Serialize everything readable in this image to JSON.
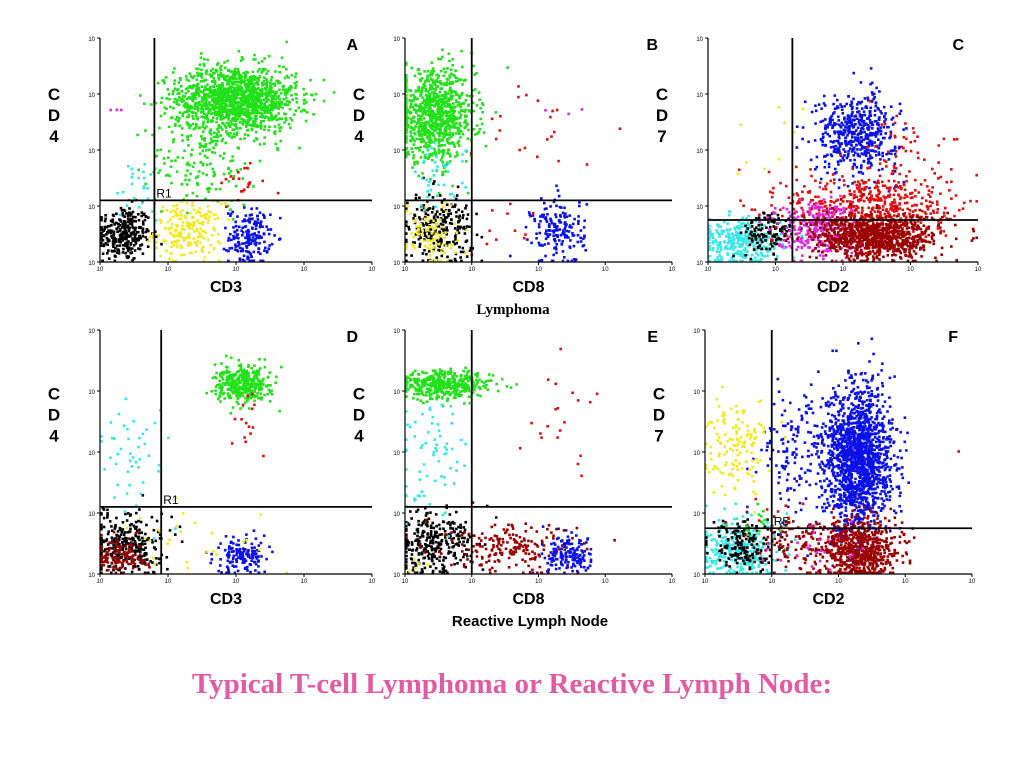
{
  "title": "Typical T-cell Lymphoma or Reactive Lymph Node:",
  "captions": {
    "row1": "Lymphoma",
    "row2": "Reactive Lymph Node"
  },
  "colors": {
    "black": "#000000",
    "yellow": "#f2ea1c",
    "blue": "#0a10e8",
    "green": "#22e01a",
    "red": "#e01010",
    "cyan": "#33e8e8",
    "magenta": "#e02ae0",
    "darkred": "#9a0000"
  },
  "chart_data": [
    {
      "type": "scatter",
      "id": "A",
      "letter": "A",
      "xlabel": "CD3",
      "ylabel": [
        "C",
        "D",
        "4"
      ],
      "gate_label": "R1",
      "quadrant_x": 0.8,
      "quadrant_y": 1.1,
      "xlim": [
        0,
        4
      ],
      "ylim": [
        0,
        4
      ],
      "scale": "log",
      "y_tick_labels": [
        "10",
        "10",
        "10",
        "10",
        "10"
      ],
      "x_tick_labels": [
        "10",
        "10",
        "10",
        "10",
        "10"
      ],
      "series": [
        {
          "color": "black",
          "clusters": [
            {
              "x": 0.35,
              "y": 0.5,
              "sx": 0.2,
              "sy": 0.25,
              "n": 300
            }
          ]
        },
        {
          "color": "yellow",
          "clusters": [
            {
              "x": 1.3,
              "y": 0.55,
              "sx": 0.25,
              "sy": 0.25,
              "n": 200
            }
          ]
        },
        {
          "color": "blue",
          "clusters": [
            {
              "x": 2.2,
              "y": 0.45,
              "sx": 0.15,
              "sy": 0.25,
              "n": 180
            }
          ]
        },
        {
          "color": "green",
          "clusters": [
            {
              "x": 2.0,
              "y": 2.9,
              "sx": 0.45,
              "sy": 0.3,
              "n": 1400
            },
            {
              "x": 1.5,
              "y": 1.8,
              "sx": 0.4,
              "sy": 0.4,
              "n": 150
            }
          ]
        },
        {
          "color": "red",
          "clusters": [
            {
              "x": 2.1,
              "y": 1.4,
              "sx": 0.2,
              "sy": 0.2,
              "n": 20
            }
          ]
        },
        {
          "color": "cyan",
          "clusters": [
            {
              "x": 0.6,
              "y": 1.3,
              "sx": 0.2,
              "sy": 0.3,
              "n": 25
            }
          ]
        },
        {
          "color": "magenta",
          "clusters": [
            {
              "x": 0.3,
              "y": 2.7,
              "sx": 0.1,
              "sy": 0.1,
              "n": 3
            }
          ]
        }
      ]
    },
    {
      "type": "scatter",
      "id": "B",
      "letter": "B",
      "xlabel": "CD8",
      "ylabel": [
        "C",
        "D",
        "4"
      ],
      "gate_label": "",
      "quadrant_x": 1.0,
      "quadrant_y": 1.1,
      "xlim": [
        0,
        4
      ],
      "ylim": [
        0,
        4
      ],
      "scale": "log",
      "y_tick_labels": [
        "10",
        "10",
        "10",
        "10",
        "10"
      ],
      "x_tick_labels": [
        "10",
        "10",
        "10",
        "10",
        "10"
      ],
      "series": [
        {
          "color": "green",
          "clusters": [
            {
              "x": 0.45,
              "y": 2.6,
              "sx": 0.3,
              "sy": 0.4,
              "n": 900
            }
          ]
        },
        {
          "color": "black",
          "clusters": [
            {
              "x": 0.5,
              "y": 0.6,
              "sx": 0.25,
              "sy": 0.3,
              "n": 250
            }
          ]
        },
        {
          "color": "yellow",
          "clusters": [
            {
              "x": 0.4,
              "y": 0.5,
              "sx": 0.2,
              "sy": 0.3,
              "n": 90
            }
          ]
        },
        {
          "color": "blue",
          "clusters": [
            {
              "x": 2.3,
              "y": 0.55,
              "sx": 0.2,
              "sy": 0.3,
              "n": 170
            }
          ]
        },
        {
          "color": "red",
          "clusters": [
            {
              "x": 2.0,
              "y": 2.2,
              "sx": 0.4,
              "sy": 0.5,
              "n": 22
            },
            {
              "x": 1.5,
              "y": 0.6,
              "sx": 0.3,
              "sy": 0.3,
              "n": 10
            }
          ]
        },
        {
          "color": "cyan",
          "clusters": [
            {
              "x": 0.5,
              "y": 1.5,
              "sx": 0.2,
              "sy": 0.3,
              "n": 40
            }
          ]
        },
        {
          "color": "magenta",
          "clusters": [
            {
              "x": 2.2,
              "y": 2.8,
              "sx": 0.3,
              "sy": 0.1,
              "n": 3
            }
          ]
        }
      ]
    },
    {
      "type": "scatter",
      "id": "C",
      "letter": "C",
      "xlabel": "CD2",
      "ylabel": [
        "C",
        "D",
        "7"
      ],
      "gate_label": "",
      "quadrant_x": 1.25,
      "quadrant_y": 0.75,
      "xlim": [
        0,
        4
      ],
      "ylim": [
        0,
        4
      ],
      "scale": "log",
      "y_tick_labels": [
        "10",
        "10",
        "10",
        "10",
        "10"
      ],
      "x_tick_labels": [
        "10",
        "10",
        "10",
        "10",
        "10"
      ],
      "series": [
        {
          "color": "cyan",
          "clusters": [
            {
              "x": 0.5,
              "y": 0.35,
              "sx": 0.3,
              "sy": 0.2,
              "n": 300
            }
          ]
        },
        {
          "color": "black",
          "clusters": [
            {
              "x": 0.9,
              "y": 0.5,
              "sx": 0.2,
              "sy": 0.2,
              "n": 120
            }
          ]
        },
        {
          "color": "blue",
          "clusters": [
            {
              "x": 2.2,
              "y": 2.3,
              "sx": 0.3,
              "sy": 0.35,
              "n": 500
            }
          ]
        },
        {
          "color": "red",
          "clusters": [
            {
              "x": 2.4,
              "y": 1.0,
              "sx": 0.6,
              "sy": 0.3,
              "n": 500
            },
            {
              "x": 2.8,
              "y": 1.9,
              "sx": 0.3,
              "sy": 0.4,
              "n": 60
            }
          ]
        },
        {
          "color": "magenta",
          "clusters": [
            {
              "x": 1.6,
              "y": 0.6,
              "sx": 0.3,
              "sy": 0.25,
              "n": 300
            }
          ]
        },
        {
          "color": "darkred",
          "clusters": [
            {
              "x": 2.5,
              "y": 0.45,
              "sx": 0.45,
              "sy": 0.2,
              "n": 900
            }
          ]
        },
        {
          "color": "yellow",
          "clusters": [
            {
              "x": 0.8,
              "y": 2.2,
              "sx": 0.4,
              "sy": 0.6,
              "n": 10
            }
          ]
        }
      ]
    },
    {
      "type": "scatter",
      "id": "D",
      "letter": "D",
      "xlabel": "CD3",
      "ylabel": [
        "C",
        "D",
        "4"
      ],
      "gate_label": "R1",
      "quadrant_x": 0.9,
      "quadrant_y": 1.1,
      "xlim": [
        0,
        4
      ],
      "ylim": [
        0,
        4
      ],
      "scale": "log",
      "y_tick_labels": [
        "10",
        "10",
        "10",
        "10",
        "10"
      ],
      "x_tick_labels": [
        "10",
        "10",
        "10",
        "10",
        "10"
      ],
      "series": [
        {
          "color": "green",
          "clusters": [
            {
              "x": 2.1,
              "y": 3.1,
              "sx": 0.2,
              "sy": 0.15,
              "n": 350
            }
          ]
        },
        {
          "color": "black",
          "clusters": [
            {
              "x": 0.4,
              "y": 0.5,
              "sx": 0.25,
              "sy": 0.25,
              "n": 300
            }
          ]
        },
        {
          "color": "darkred",
          "clusters": [
            {
              "x": 0.3,
              "y": 0.3,
              "sx": 0.2,
              "sy": 0.15,
              "n": 120
            }
          ]
        },
        {
          "color": "blue",
          "clusters": [
            {
              "x": 2.1,
              "y": 0.3,
              "sx": 0.2,
              "sy": 0.15,
              "n": 150
            }
          ]
        },
        {
          "color": "yellow",
          "clusters": [
            {
              "x": 1.5,
              "y": 0.6,
              "sx": 0.6,
              "sy": 0.3,
              "n": 25
            }
          ]
        },
        {
          "color": "cyan",
          "clusters": [
            {
              "x": 0.5,
              "y": 2.0,
              "sx": 0.25,
              "sy": 0.5,
              "n": 45
            }
          ]
        },
        {
          "color": "red",
          "clusters": [
            {
              "x": 2.2,
              "y": 2.4,
              "sx": 0.15,
              "sy": 0.3,
              "n": 15
            }
          ]
        }
      ]
    },
    {
      "type": "scatter",
      "id": "E",
      "letter": "E",
      "xlabel": "CD8",
      "ylabel": [
        "C",
        "D",
        "4"
      ],
      "gate_label": "",
      "quadrant_x": 1.0,
      "quadrant_y": 1.1,
      "xlim": [
        0,
        4
      ],
      "ylim": [
        0,
        4
      ],
      "scale": "log",
      "y_tick_labels": [
        "10",
        "10",
        "10",
        "10",
        "10"
      ],
      "x_tick_labels": [
        "10",
        "10",
        "10",
        "10",
        "10"
      ],
      "series": [
        {
          "color": "green",
          "clusters": [
            {
              "x": 0.6,
              "y": 3.1,
              "sx": 0.35,
              "sy": 0.12,
              "n": 400
            }
          ]
        },
        {
          "color": "black",
          "clusters": [
            {
              "x": 0.4,
              "y": 0.5,
              "sx": 0.3,
              "sy": 0.25,
              "n": 300
            }
          ]
        },
        {
          "color": "darkred",
          "clusters": [
            {
              "x": 1.6,
              "y": 0.4,
              "sx": 0.5,
              "sy": 0.2,
              "n": 200
            }
          ]
        },
        {
          "color": "blue",
          "clusters": [
            {
              "x": 2.5,
              "y": 0.3,
              "sx": 0.2,
              "sy": 0.15,
              "n": 150
            }
          ]
        },
        {
          "color": "cyan",
          "clusters": [
            {
              "x": 0.4,
              "y": 1.8,
              "sx": 0.25,
              "sy": 0.5,
              "n": 70
            }
          ]
        },
        {
          "color": "red",
          "clusters": [
            {
              "x": 2.3,
              "y": 2.6,
              "sx": 0.3,
              "sy": 0.4,
              "n": 20
            }
          ]
        },
        {
          "color": "yellow",
          "clusters": [
            {
              "x": 0.2,
              "y": 0.2,
              "sx": 0.1,
              "sy": 0.1,
              "n": 5
            }
          ]
        }
      ]
    },
    {
      "type": "scatter",
      "id": "F",
      "letter": "F",
      "xlabel": "CD2",
      "ylabel": [
        "C",
        "D",
        "7"
      ],
      "gate_label": "R5",
      "quadrant_x": 1.0,
      "quadrant_y": 0.75,
      "xlim": [
        0,
        4
      ],
      "ylim": [
        0,
        4
      ],
      "scale": "log",
      "y_tick_labels": [
        "10",
        "10",
        "10",
        "10",
        "10"
      ],
      "x_tick_labels": [
        "10",
        "10",
        "10",
        "10",
        "10"
      ],
      "series": [
        {
          "color": "blue",
          "clusters": [
            {
              "x": 2.3,
              "y": 1.9,
              "sx": 0.25,
              "sy": 0.6,
              "n": 1600
            },
            {
              "x": 1.4,
              "y": 2.0,
              "sx": 0.3,
              "sy": 0.5,
              "n": 150
            }
          ]
        },
        {
          "color": "cyan",
          "clusters": [
            {
              "x": 0.5,
              "y": 0.4,
              "sx": 0.3,
              "sy": 0.25,
              "n": 300
            }
          ]
        },
        {
          "color": "black",
          "clusters": [
            {
              "x": 0.6,
              "y": 0.45,
              "sx": 0.25,
              "sy": 0.2,
              "n": 160
            }
          ]
        },
        {
          "color": "yellow",
          "clusters": [
            {
              "x": 0.45,
              "y": 2.1,
              "sx": 0.25,
              "sy": 0.35,
              "n": 140
            }
          ]
        },
        {
          "color": "darkred",
          "clusters": [
            {
              "x": 2.3,
              "y": 0.4,
              "sx": 0.3,
              "sy": 0.25,
              "n": 700
            },
            {
              "x": 1.4,
              "y": 0.5,
              "sx": 0.3,
              "sy": 0.25,
              "n": 100
            }
          ]
        },
        {
          "color": "magenta",
          "clusters": [
            {
              "x": 1.6,
              "y": 0.45,
              "sx": 0.4,
              "sy": 0.2,
              "n": 25
            }
          ]
        },
        {
          "color": "green",
          "clusters": [
            {
              "x": 0.8,
              "y": 0.9,
              "sx": 0.2,
              "sy": 0.15,
              "n": 15
            }
          ]
        },
        {
          "color": "red",
          "clusters": [
            {
              "x": 1.2,
              "y": 1.0,
              "sx": 0.4,
              "sy": 0.2,
              "n": 12
            },
            {
              "x": 3.8,
              "y": 2.1,
              "sx": 0.05,
              "sy": 0.05,
              "n": 1
            }
          ]
        }
      ]
    }
  ]
}
